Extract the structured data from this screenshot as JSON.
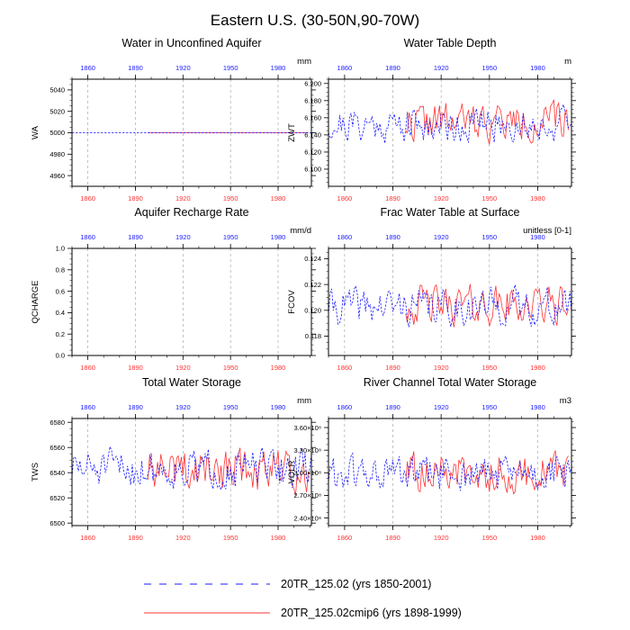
{
  "figure_title": "Eastern U.S. (30-50N,90-70W)",
  "legend": {
    "entries": [
      {
        "label": "20TR_125.02 (yrs 1850-2001)",
        "color": "#1a1aff",
        "style": "dashed"
      },
      {
        "label": "20TR_125.02cmip6 (yrs 1898-1999)",
        "color": "#ff3333",
        "style": "solid"
      }
    ]
  },
  "chart_data": [
    {
      "type": "line",
      "title": "Water in Unconfined Aquifer",
      "ylabel": "WA",
      "units": "mm",
      "xlim": [
        1850,
        2001
      ],
      "ylim": [
        4950,
        5050
      ],
      "xticks": [
        1860,
        1890,
        1920,
        1950,
        1980
      ],
      "yticks": [
        4960,
        4980,
        5000,
        5020,
        5040
      ],
      "yticklabels": [
        "4960",
        "4980",
        "5000",
        "5020",
        "5040"
      ],
      "series": [
        {
          "name": "20TR_125.02 (yrs 1850-2001)",
          "x_start": 1850,
          "x_end": 2001,
          "mean": 5000,
          "amplitude": 0,
          "seed": 11
        },
        {
          "name": "20TR_125.02cmip6 (yrs 1898-1999)",
          "x_start": 1898,
          "x_end": 1999,
          "mean": 5000,
          "amplitude": 0,
          "seed": 12
        }
      ]
    },
    {
      "type": "line",
      "title": "Water Table Depth",
      "ylabel": "ZWT",
      "units": "m",
      "xlim": [
        1850,
        2001
      ],
      "ylim": [
        6.08,
        6.205
      ],
      "xticks": [
        1860,
        1890,
        1920,
        1950,
        1980
      ],
      "yticks": [
        6.1,
        6.12,
        6.14,
        6.16,
        6.18,
        6.2
      ],
      "yticklabels": [
        "6.100",
        "6.120",
        "6.140",
        "6.160",
        "6.180",
        "6.200"
      ],
      "series": [
        {
          "name": "20TR_125.02 (yrs 1850-2001)",
          "x_start": 1850,
          "x_end": 2001,
          "mean": 6.152,
          "amplitude": 0.02,
          "seed": 21
        },
        {
          "name": "20TR_125.02cmip6 (yrs 1898-1999)",
          "x_start": 1898,
          "x_end": 1999,
          "mean": 6.155,
          "amplitude": 0.022,
          "seed": 22
        }
      ]
    },
    {
      "type": "line",
      "title": "Aquifer Recharge Rate",
      "ylabel": "QCHARGE",
      "units": "mm/d",
      "xlim": [
        1850,
        2001
      ],
      "ylim": [
        0,
        1
      ],
      "xticks": [
        1860,
        1890,
        1920,
        1950,
        1980
      ],
      "yticks": [
        0,
        0.2,
        0.4,
        0.6,
        0.8,
        1.0
      ],
      "yticklabels": [
        "0.0",
        "0.2",
        "0.4",
        "0.6",
        "0.8",
        "1.0"
      ],
      "series": []
    },
    {
      "type": "line",
      "title": "Frac Water Table at Surface",
      "ylabel": "FCOV",
      "units": "unitless [0-1]",
      "xlim": [
        1850,
        2001
      ],
      "ylim": [
        0.1165,
        0.1248
      ],
      "xticks": [
        1860,
        1890,
        1920,
        1950,
        1980
      ],
      "yticks": [
        0.118,
        0.12,
        0.122,
        0.124
      ],
      "yticklabels": [
        "0.118",
        "0.120",
        "0.122",
        "0.124"
      ],
      "series": [
        {
          "name": "20TR_125.02 (yrs 1850-2001)",
          "x_start": 1850,
          "x_end": 2001,
          "mean": 0.1203,
          "amplitude": 0.0014,
          "seed": 41
        },
        {
          "name": "20TR_125.02cmip6 (yrs 1898-1999)",
          "x_start": 1898,
          "x_end": 1999,
          "mean": 0.1204,
          "amplitude": 0.0015,
          "seed": 42
        }
      ]
    },
    {
      "type": "line",
      "title": "Total Water Storage",
      "ylabel": "TWS",
      "units": "mm",
      "xlim": [
        1850,
        2001
      ],
      "ylim": [
        6498,
        6583
      ],
      "xticks": [
        1860,
        1890,
        1920,
        1950,
        1980
      ],
      "yticks": [
        6500,
        6520,
        6540,
        6560,
        6580
      ],
      "yticklabels": [
        "6500",
        "6520",
        "6540",
        "6560",
        "6580"
      ],
      "series": [
        {
          "name": "20TR_125.02 (yrs 1850-2001)",
          "x_start": 1850,
          "x_end": 2001,
          "mean": 6543,
          "amplitude": 15,
          "seed": 51
        },
        {
          "name": "20TR_125.02cmip6 (yrs 1898-1999)",
          "x_start": 1898,
          "x_end": 1999,
          "mean": 6542,
          "amplitude": 17,
          "seed": 52
        }
      ]
    },
    {
      "type": "line",
      "title": "River Channel Total Water Storage",
      "ylabel": "VOLR",
      "units": "m3",
      "xlim": [
        1850,
        2001
      ],
      "ylim": [
        230000000.0,
        372000000.0
      ],
      "xticks": [
        1860,
        1890,
        1920,
        1950,
        1980
      ],
      "yticks": [
        240000000.0,
        270000000.0,
        300000000.0,
        330000000.0,
        360000000.0
      ],
      "yticklabels": [
        "2.40×10⁸",
        "2.70×10⁸",
        "3.00×10⁸",
        "3.30×10⁸",
        "3.60×10⁸"
      ],
      "series": [
        {
          "name": "20TR_125.02 (yrs 1850-2001)",
          "x_start": 1850,
          "x_end": 2001,
          "mean": 298000000.0,
          "amplitude": 24000000.0,
          "seed": 61
        },
        {
          "name": "20TR_125.02cmip6 (yrs 1898-1999)",
          "x_start": 1898,
          "x_end": 1999,
          "mean": 300000000.0,
          "amplitude": 26000000.0,
          "seed": 62
        }
      ]
    }
  ]
}
